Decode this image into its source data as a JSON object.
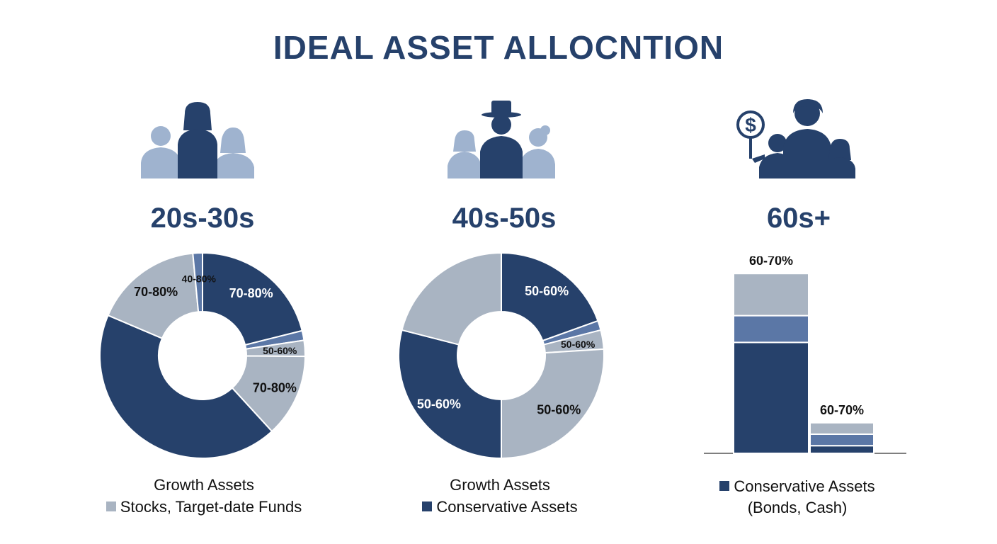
{
  "title": "IDEAL ASSET ALLOCNTION",
  "colors": {
    "dark": "#26416b",
    "mid": "#5b77a6",
    "light": "#a9b4c2",
    "people_light": "#9fb3cf"
  },
  "groups": [
    {
      "age": "20s-30s",
      "legend": {
        "line1": "Growth Assets",
        "line2": "Stocks, Target-date Funds",
        "line2_swatch": "light"
      }
    },
    {
      "age": "40s-50s",
      "legend": {
        "line1": "Growth Assets",
        "line2": "Conservative Assets",
        "line2_swatch": "dark"
      }
    },
    {
      "age": "60s+",
      "legend": {
        "line1": "Conservative Assets",
        "line2": "(Bonds, Cash)",
        "line1_swatch": "dark"
      },
      "icon": "dollar-sign-icon"
    }
  ],
  "chart_data": [
    {
      "type": "pie",
      "title": "20s-30s",
      "donut": true,
      "slices": [
        {
          "value": 21,
          "color": "dark",
          "label": "70-80%"
        },
        {
          "value": 1.5,
          "color": "mid",
          "label": ""
        },
        {
          "value": 2.5,
          "color": "light",
          "label": "50-60%"
        },
        {
          "value": 13,
          "color": "light",
          "label": "70-80%"
        },
        {
          "value": 43,
          "color": "dark",
          "label": ""
        },
        {
          "value": 17,
          "color": "light",
          "label": "70-80%"
        },
        {
          "value": 1.5,
          "color": "mid",
          "label": "40-80%"
        }
      ]
    },
    {
      "type": "pie",
      "title": "40s-50s",
      "donut": true,
      "slices": [
        {
          "value": 19.5,
          "color": "dark",
          "label": "50-60%"
        },
        {
          "value": 1.5,
          "color": "mid",
          "label": ""
        },
        {
          "value": 3,
          "color": "light",
          "label": "50-60%"
        },
        {
          "value": 26,
          "color": "light",
          "label": "50-60%"
        },
        {
          "value": 29,
          "color": "dark",
          "label": "50-60%"
        },
        {
          "value": 21,
          "color": "light",
          "label": ""
        }
      ]
    },
    {
      "type": "bar",
      "title": "60s+",
      "stacked": true,
      "bars": [
        {
          "label": "60-70%",
          "segments": [
            {
              "value": 58,
              "color": "dark"
            },
            {
              "value": 14,
              "color": "mid"
            },
            {
              "value": 22,
              "color": "light"
            }
          ]
        },
        {
          "label": "60-70%",
          "segments": [
            {
              "value": 4,
              "color": "dark"
            },
            {
              "value": 6,
              "color": "mid"
            },
            {
              "value": 6,
              "color": "light"
            }
          ]
        }
      ],
      "ylim": [
        0,
        100
      ]
    }
  ]
}
